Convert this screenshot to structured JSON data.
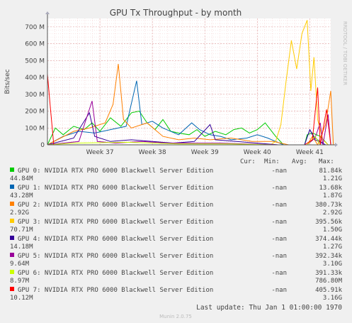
{
  "chart_data": {
    "type": "line",
    "title": "GPU Tx Throughput - by month",
    "ylabel": "Bits/sec",
    "xlabel": "",
    "ylim": [
      0,
      750000000
    ],
    "y_ticks": [
      {
        "value": 0,
        "label": "0"
      },
      {
        "value": 100000000,
        "label": "100 M"
      },
      {
        "value": 200000000,
        "label": "200 M"
      },
      {
        "value": 300000000,
        "label": "300 M"
      },
      {
        "value": 400000000,
        "label": "400 M"
      },
      {
        "value": 500000000,
        "label": "500 M"
      },
      {
        "value": 600000000,
        "label": "600 M"
      },
      {
        "value": 700000000,
        "label": "700 M"
      }
    ],
    "x_ticks": [
      "Week 37",
      "Week 38",
      "Week 39",
      "Week 40",
      "Week 41"
    ],
    "grid": true,
    "side_label": "RRDTOOL / TOBI OETIKER",
    "legend_header": {
      "cur": "Cur:",
      "min": "Min:",
      "avg": "Avg:",
      "max": "Max:"
    },
    "series": [
      {
        "name": "GPU 0: NVIDIA RTX PRO 6000 Blackwell Server Edition",
        "color": "#00cc00",
        "cur": "-nan",
        "min": "81.84k",
        "avg": "44.84M",
        "max": "1.21G",
        "points": [
          [
            36,
            0
          ],
          [
            36.15,
            100000000.0
          ],
          [
            36.3,
            60000000.0
          ],
          [
            36.5,
            110000000.0
          ],
          [
            36.7,
            90000000.0
          ],
          [
            36.85,
            130000000.0
          ],
          [
            37.0,
            80000000.0
          ],
          [
            37.2,
            160000000.0
          ],
          [
            37.4,
            110000000.0
          ],
          [
            37.6,
            190000000.0
          ],
          [
            37.75,
            200000000.0
          ],
          [
            37.9,
            130000000.0
          ],
          [
            38.05,
            90000000.0
          ],
          [
            38.2,
            150000000.0
          ],
          [
            38.35,
            80000000.0
          ],
          [
            38.5,
            70000000.0
          ],
          [
            38.7,
            60000000.0
          ],
          [
            38.85,
            90000000.0
          ],
          [
            39.0,
            50000000.0
          ],
          [
            39.2,
            80000000.0
          ],
          [
            39.4,
            60000000.0
          ],
          [
            39.55,
            90000000.0
          ],
          [
            39.7,
            100000000.0
          ],
          [
            39.85,
            70000000.0
          ],
          [
            40.0,
            90000000.0
          ],
          [
            40.15,
            130000000.0
          ],
          [
            40.35,
            50000000.0
          ],
          [
            40.5,
            0
          ],
          [
            40.9,
            0
          ],
          [
            40.95,
            60000000.0
          ],
          [
            41.05,
            70000000.0
          ],
          [
            41.2,
            50000000.0
          ],
          [
            41.35,
            0
          ]
        ]
      },
      {
        "name": "GPU 1: NVIDIA RTX PRO 6000 Blackwell Server Edition",
        "color": "#0066b3",
        "cur": "-nan",
        "min": "13.68k",
        "avg": "43.28M",
        "max": "1.87G",
        "points": [
          [
            36,
            0
          ],
          [
            36.3,
            50000000.0
          ],
          [
            36.6,
            80000000.0
          ],
          [
            36.9,
            70000000.0
          ],
          [
            37.2,
            90000000.0
          ],
          [
            37.5,
            110000000.0
          ],
          [
            37.7,
            380000000.0
          ],
          [
            37.8,
            120000000.0
          ],
          [
            38.0,
            140000000.0
          ],
          [
            38.2,
            100000000.0
          ],
          [
            38.5,
            60000000.0
          ],
          [
            38.75,
            130000000.0
          ],
          [
            38.9,
            90000000.0
          ],
          [
            39.1,
            60000000.0
          ],
          [
            39.3,
            50000000.0
          ],
          [
            39.5,
            30000000.0
          ],
          [
            39.8,
            40000000.0
          ],
          [
            40.0,
            60000000.0
          ],
          [
            40.2,
            40000000.0
          ],
          [
            40.5,
            0
          ],
          [
            40.9,
            0
          ],
          [
            41.0,
            90000000.0
          ],
          [
            41.1,
            40000000.0
          ],
          [
            41.3,
            0
          ]
        ]
      },
      {
        "name": "GPU 2: NVIDIA RTX PRO 6000 Blackwell Server Edition",
        "color": "#ff8000",
        "cur": "-nan",
        "min": "380.73k",
        "avg": "2.92G",
        "max": "2.92G",
        "points": [
          [
            36,
            0
          ],
          [
            36.5,
            80000000.0
          ],
          [
            36.8,
            100000000.0
          ],
          [
            37.1,
            130000000.0
          ],
          [
            37.25,
            240000000.0
          ],
          [
            37.35,
            480000000.0
          ],
          [
            37.45,
            150000000.0
          ],
          [
            37.6,
            100000000.0
          ],
          [
            37.9,
            130000000.0
          ],
          [
            38.2,
            50000000.0
          ],
          [
            38.5,
            30000000.0
          ],
          [
            38.8,
            40000000.0
          ],
          [
            39.1,
            30000000.0
          ],
          [
            39.5,
            40000000.0
          ],
          [
            39.9,
            20000000.0
          ],
          [
            40.3,
            20000000.0
          ],
          [
            40.6,
            0
          ],
          [
            40.95,
            0
          ],
          [
            41.05,
            50000000.0
          ],
          [
            41.15,
            0
          ],
          [
            41.3,
            120000000.0
          ],
          [
            41.4,
            320000000.0
          ],
          [
            41.45,
            0
          ]
        ]
      },
      {
        "name": "GPU 3: NVIDIA RTX PRO 6000 Blackwell Server Edition",
        "color": "#ffcc00",
        "cur": "-nan",
        "min": "395.56k",
        "avg": "70.71M",
        "max": "1.50G",
        "points": [
          [
            36,
            0
          ],
          [
            40.25,
            0
          ],
          [
            40.35,
            20000000.0
          ],
          [
            40.45,
            120000000.0
          ],
          [
            40.55,
            380000000.0
          ],
          [
            40.65,
            620000000.0
          ],
          [
            40.75,
            450000000.0
          ],
          [
            40.85,
            660000000.0
          ],
          [
            40.95,
            740000000.0
          ],
          [
            41.02,
            320000000.0
          ],
          [
            41.08,
            520000000.0
          ],
          [
            41.15,
            150000000.0
          ],
          [
            41.25,
            30000000.0
          ],
          [
            41.35,
            0
          ]
        ]
      },
      {
        "name": "GPU 4: NVIDIA RTX PRO 6000 Blackwell Server Edition",
        "color": "#330099",
        "cur": "-nan",
        "min": "374.44k",
        "avg": "14.18M",
        "max": "1.27G",
        "points": [
          [
            36,
            0
          ],
          [
            36.5,
            40000000.0
          ],
          [
            36.8,
            190000000.0
          ],
          [
            36.9,
            50000000.0
          ],
          [
            37.2,
            20000000.0
          ],
          [
            37.6,
            30000000.0
          ],
          [
            38.0,
            20000000.0
          ],
          [
            38.4,
            10000000.0
          ],
          [
            38.8,
            20000000.0
          ],
          [
            39.1,
            120000000.0
          ],
          [
            39.2,
            30000000.0
          ],
          [
            39.6,
            20000000.0
          ],
          [
            40.0,
            10000000.0
          ],
          [
            40.4,
            0
          ],
          [
            40.9,
            0
          ],
          [
            41.0,
            90000000.0
          ],
          [
            41.1,
            30000000.0
          ],
          [
            41.3,
            0
          ]
        ]
      },
      {
        "name": "GPU 5: NVIDIA RTX PRO 6000 Blackwell Server Edition",
        "color": "#990099",
        "cur": "-nan",
        "min": "392.34k",
        "avg": "9.64M",
        "max": "3.10G",
        "points": [
          [
            36,
            0
          ],
          [
            36.6,
            20000000.0
          ],
          [
            36.85,
            260000000.0
          ],
          [
            36.95,
            20000000.0
          ],
          [
            37.3,
            10000000.0
          ],
          [
            37.8,
            20000000.0
          ],
          [
            38.3,
            10000000.0
          ],
          [
            38.8,
            10000000.0
          ],
          [
            39.3,
            10000000.0
          ],
          [
            39.8,
            5000000.0
          ],
          [
            40.4,
            0
          ],
          [
            40.95,
            0
          ],
          [
            41.1,
            40000000.0
          ],
          [
            41.2,
            130000000.0
          ],
          [
            41.25,
            0
          ],
          [
            41.35,
            180000000.0
          ],
          [
            41.4,
            0
          ]
        ]
      },
      {
        "name": "GPU 6: NVIDIA RTX PRO 6000 Blackwell Server Edition",
        "color": "#ccff00",
        "cur": "-nan",
        "min": "391.33k",
        "avg": "8.97M",
        "max": "786.80M",
        "points": [
          [
            36,
            0
          ],
          [
            36.5,
            10000000.0
          ],
          [
            37.5,
            15000000.0
          ],
          [
            38.5,
            5000000.0
          ],
          [
            39.5,
            5000000.0
          ],
          [
            40.3,
            0
          ],
          [
            40.95,
            0
          ],
          [
            41.1,
            50000000.0
          ],
          [
            41.2,
            0
          ]
        ]
      },
      {
        "name": "GPU 7: NVIDIA RTX PRO 6000 Blackwell Server Edition",
        "color": "#ff0000",
        "cur": "-nan",
        "min": "405.91k",
        "avg": "10.12M",
        "max": "3.16G",
        "points": [
          [
            36,
            420000000.0
          ],
          [
            36.05,
            240000000.0
          ],
          [
            36.12,
            0
          ],
          [
            40.9,
            0
          ],
          [
            41.05,
            30000000.0
          ],
          [
            41.15,
            340000000.0
          ],
          [
            41.2,
            0
          ],
          [
            41.32,
            210000000.0
          ],
          [
            41.4,
            0
          ]
        ]
      }
    ],
    "x_range": [
      36,
      41.4
    ],
    "week_tick_values": [
      37,
      38,
      39,
      40,
      41
    ]
  },
  "footer": {
    "last_update": "Last update: Thu Jan  1 01:00:00 1970",
    "munin_version": "Munin 2.0.75"
  }
}
